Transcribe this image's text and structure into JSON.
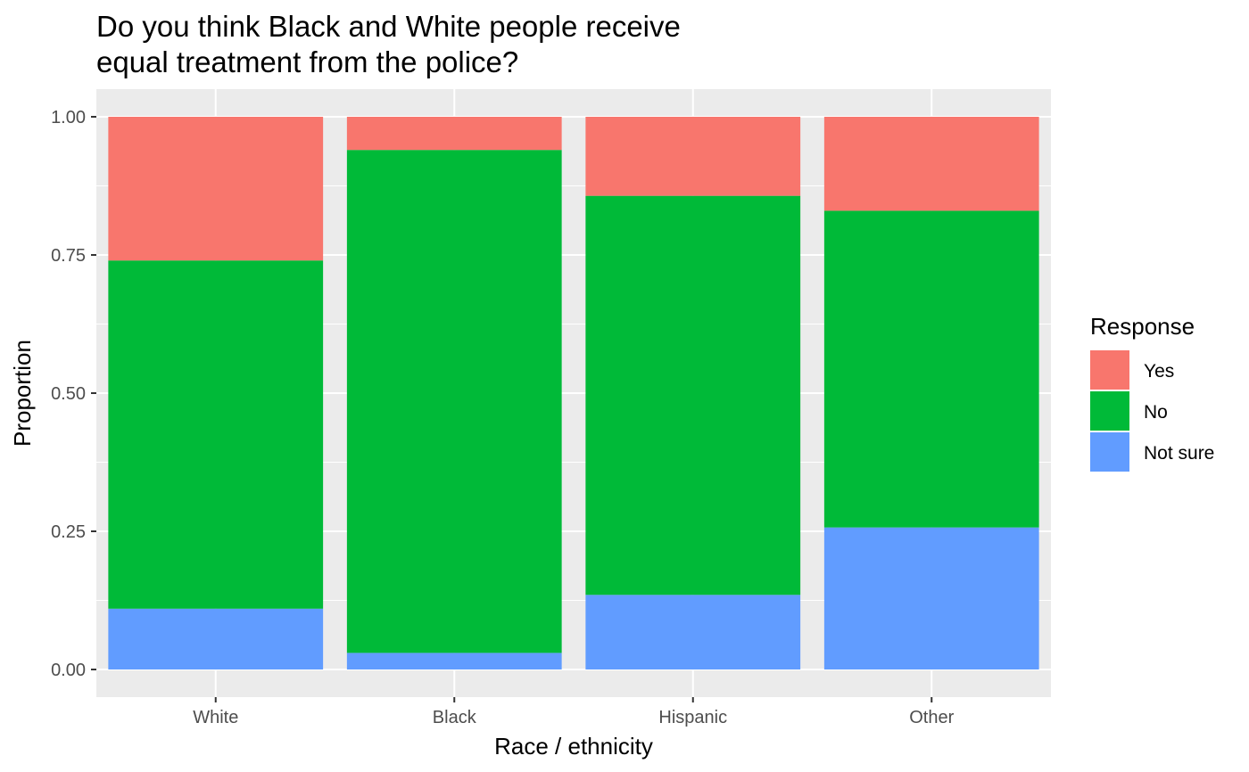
{
  "chart_data": {
    "type": "bar",
    "stacked": true,
    "title": "Do you think Black and White people receive equal treatment from the police?",
    "title_lines": [
      "Do you think Black and White people receive",
      "equal treatment from the police?"
    ],
    "xlabel": "Race / ethnicity",
    "ylabel": "Proportion",
    "ylim": [
      0,
      1
    ],
    "yticks": [
      "0.00",
      "0.25",
      "0.50",
      "0.75",
      "1.00"
    ],
    "grid": true,
    "categories": [
      "White",
      "Black",
      "Hispanic",
      "Other"
    ],
    "legend": {
      "title": "Response",
      "position": "right"
    },
    "series": [
      {
        "name": "Not sure",
        "color": "#619CFF",
        "values": [
          0.11,
          0.03,
          0.135,
          0.257
        ]
      },
      {
        "name": "No",
        "color": "#00BA38",
        "values": [
          0.63,
          0.91,
          0.722,
          0.573
        ]
      },
      {
        "name": "Yes",
        "color": "#F8766D",
        "values": [
          0.26,
          0.06,
          0.143,
          0.17
        ]
      }
    ],
    "legend_order": [
      "Yes",
      "No",
      "Not sure"
    ]
  }
}
